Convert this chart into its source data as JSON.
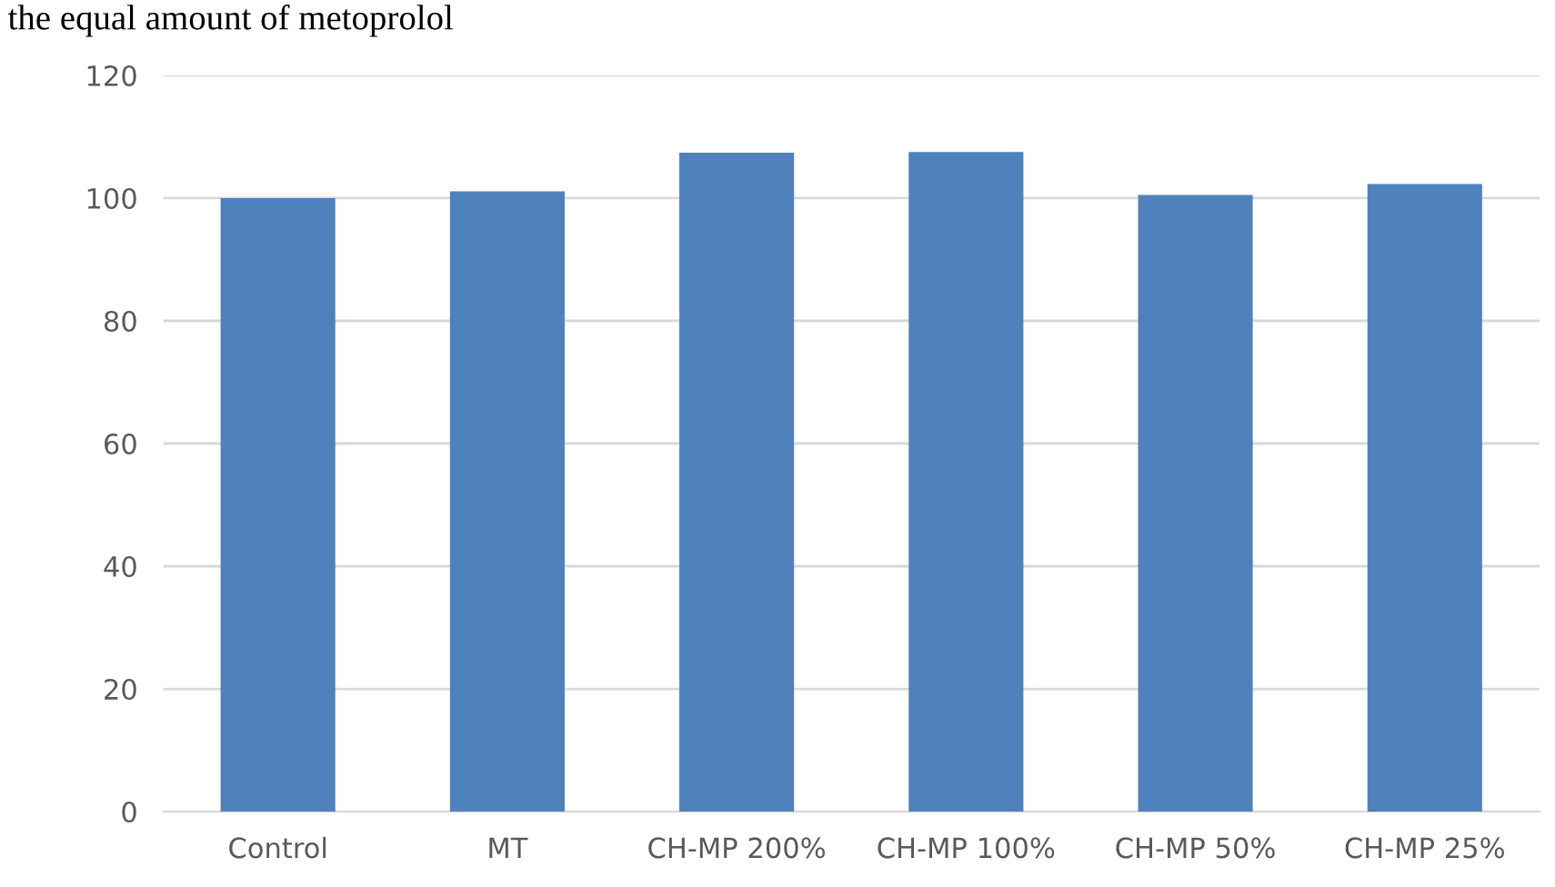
{
  "chart_data": {
    "type": "bar",
    "annotations": [
      "the equal amount of metoprolol"
    ],
    "categories": [
      "Control",
      "MT",
      "CH-MP 200%",
      "CH-MP 100%",
      "CH-MP 50%",
      "CH-MP 25%"
    ],
    "values": [
      100,
      101.1,
      107.4,
      107.5,
      100.5,
      102.3
    ],
    "color": "#4f81bd",
    "ylim": [
      0,
      120
    ],
    "yticks": [
      0,
      20,
      40,
      60,
      80,
      100,
      120
    ],
    "grid": "y",
    "legend": false
  }
}
